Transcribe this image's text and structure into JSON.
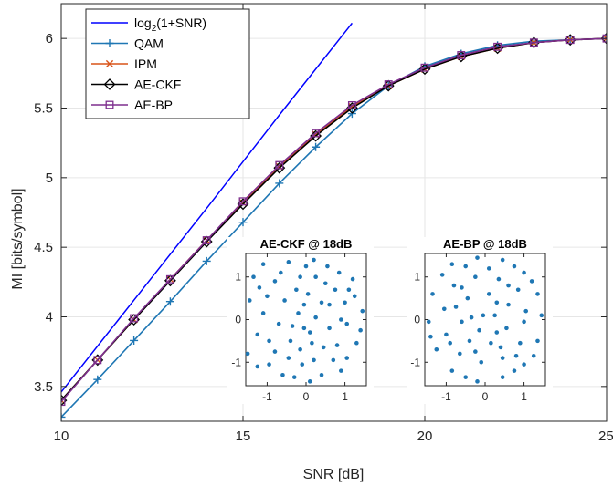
{
  "chart_data": {
    "type": "line",
    "xlabel": "SNR [dB]",
    "ylabel": "MI [bits/symbol]",
    "xlim": [
      10,
      25
    ],
    "ylim": [
      3.25,
      6.25
    ],
    "x_ticks": [
      10,
      15,
      20,
      25
    ],
    "y_ticks": [
      3.5,
      4,
      4.5,
      5,
      5.5,
      6
    ],
    "grid": true,
    "legend_position": "top-left",
    "series": [
      {
        "name": "log",
        "name_sub": "2",
        "name_rest": "(1+SNR)",
        "color": "#0000ff",
        "marker": "none",
        "x": [
          10,
          12,
          14,
          16,
          18
        ],
        "y": [
          3.46,
          4.12,
          4.78,
          5.45,
          6.11
        ]
      },
      {
        "name": "QAM",
        "color": "#1f77b4",
        "marker": "plus",
        "x": [
          10,
          11,
          12,
          13,
          14,
          15,
          16,
          17,
          18,
          19,
          20,
          21,
          22,
          23,
          24,
          25
        ],
        "y": [
          3.28,
          3.55,
          3.83,
          4.11,
          4.4,
          4.68,
          4.96,
          5.22,
          5.46,
          5.66,
          5.8,
          5.89,
          5.95,
          5.98,
          5.99,
          6.0
        ]
      },
      {
        "name": "IPM",
        "color": "#d95319",
        "marker": "x",
        "x": [
          10,
          11,
          12,
          13,
          14,
          15,
          16,
          17,
          18,
          19,
          20,
          21,
          22,
          23,
          24,
          25
        ],
        "y": [
          3.4,
          3.69,
          3.98,
          4.27,
          4.55,
          4.82,
          5.08,
          5.31,
          5.51,
          5.66,
          5.78,
          5.87,
          5.93,
          5.97,
          5.99,
          6.0
        ]
      },
      {
        "name": "AE-CKF",
        "color": "#000000",
        "marker": "diamond",
        "x": [
          10,
          11,
          12,
          13,
          14,
          15,
          16,
          17,
          18,
          19,
          20,
          21,
          22,
          23,
          24,
          25
        ],
        "y": [
          3.4,
          3.69,
          3.98,
          4.26,
          4.54,
          4.81,
          5.07,
          5.3,
          5.5,
          5.66,
          5.78,
          5.87,
          5.93,
          5.97,
          5.99,
          6.0
        ]
      },
      {
        "name": "AE-BP",
        "color": "#7e2f8e",
        "marker": "square",
        "x": [
          10,
          11,
          12,
          13,
          14,
          15,
          16,
          17,
          18,
          19,
          20,
          21,
          22,
          23,
          24,
          25
        ],
        "y": [
          3.39,
          3.69,
          3.99,
          4.27,
          4.55,
          4.83,
          5.09,
          5.32,
          5.52,
          5.67,
          5.79,
          5.88,
          5.94,
          5.97,
          5.99,
          6.0
        ]
      }
    ],
    "insets": [
      {
        "title": "AE-CKF @ 18dB",
        "xlim": [
          -1.55,
          1.55
        ],
        "ylim": [
          -1.55,
          1.55
        ],
        "x_ticks": [
          -1,
          0,
          1
        ],
        "y_ticks": [
          -1,
          0,
          1
        ],
        "color": "#1f77b4",
        "points": [
          [
            -1.1,
            1.3
          ],
          [
            -0.45,
            1.35
          ],
          [
            0.2,
            1.4
          ],
          [
            0.85,
            1.1
          ],
          [
            1.25,
            0.55
          ],
          [
            -1.45,
            0.45
          ],
          [
            -1.25,
            -0.35
          ],
          [
            -0.95,
            -1.05
          ],
          [
            -0.3,
            -1.35
          ],
          [
            0.4,
            -1.3
          ],
          [
            1.05,
            -0.9
          ],
          [
            1.4,
            -0.25
          ],
          [
            1.45,
            0.2
          ],
          [
            -0.8,
            0.9
          ],
          [
            -0.15,
            1.0
          ],
          [
            0.5,
            0.85
          ],
          [
            1.0,
            0.4
          ],
          [
            -1.1,
            0.15
          ],
          [
            -0.95,
            -0.5
          ],
          [
            -0.45,
            -0.9
          ],
          [
            0.2,
            -0.95
          ],
          [
            0.8,
            -0.6
          ],
          [
            1.05,
            -0.1
          ],
          [
            -0.55,
            0.45
          ],
          [
            0.05,
            0.6
          ],
          [
            0.6,
            0.35
          ],
          [
            -0.7,
            -0.1
          ],
          [
            -0.4,
            -0.5
          ],
          [
            0.15,
            -0.55
          ],
          [
            0.6,
            -0.2
          ],
          [
            -0.2,
            0.15
          ],
          [
            0.25,
            0.05
          ],
          [
            -0.05,
            -0.2
          ],
          [
            -1.35,
            1.0
          ],
          [
            1.2,
            0.95
          ],
          [
            -0.6,
            -1.3
          ],
          [
            0.9,
            -1.2
          ],
          [
            -1.5,
            -0.8
          ],
          [
            0.0,
            1.25
          ],
          [
            -0.1,
            -1.05
          ],
          [
            0.4,
            0.4
          ],
          [
            -0.35,
            -0.15
          ],
          [
            0.9,
            0.0
          ],
          [
            -1.0,
            0.55
          ],
          [
            0.45,
            -0.65
          ],
          [
            -0.25,
            0.7
          ],
          [
            0.7,
            -0.95
          ],
          [
            -0.8,
            -0.75
          ],
          [
            1.3,
            -0.55
          ],
          [
            0.25,
            1.0
          ],
          [
            -0.65,
            1.1
          ],
          [
            0.1,
            -0.3
          ],
          [
            -0.05,
            0.35
          ],
          [
            1.1,
            0.7
          ],
          [
            -1.25,
            -1.1
          ],
          [
            0.55,
            1.25
          ],
          [
            -0.15,
            -0.7
          ],
          [
            -1.2,
            0.75
          ],
          [
            0.75,
            0.7
          ],
          [
            0.1,
            -1.45
          ]
        ]
      },
      {
        "title": "AE-BP @ 18dB",
        "xlim": [
          -1.55,
          1.55
        ],
        "ylim": [
          -1.55,
          1.55
        ],
        "x_ticks": [
          -1,
          0,
          1
        ],
        "y_ticks": [
          -1,
          0,
          1
        ],
        "color": "#1f77b4",
        "points": [
          [
            -0.85,
            1.3
          ],
          [
            -0.2,
            1.45
          ],
          [
            0.45,
            1.4
          ],
          [
            1.0,
            1.1
          ],
          [
            1.35,
            0.6
          ],
          [
            -1.35,
            0.6
          ],
          [
            -1.45,
            -0.05
          ],
          [
            -1.25,
            -0.7
          ],
          [
            -0.85,
            -1.2
          ],
          [
            -0.2,
            -1.45
          ],
          [
            0.45,
            -1.35
          ],
          [
            1.0,
            -1.05
          ],
          [
            1.35,
            -0.5
          ],
          [
            1.45,
            0.1
          ],
          [
            -0.8,
            0.8
          ],
          [
            -0.25,
            1.0
          ],
          [
            0.35,
            0.95
          ],
          [
            0.85,
            0.7
          ],
          [
            1.05,
            0.2
          ],
          [
            -1.05,
            0.25
          ],
          [
            -1.0,
            -0.35
          ],
          [
            -0.65,
            -0.8
          ],
          [
            -0.1,
            -1.0
          ],
          [
            0.45,
            -0.9
          ],
          [
            0.9,
            -0.55
          ],
          [
            1.0,
            -0.05
          ],
          [
            -0.45,
            0.5
          ],
          [
            0.1,
            0.6
          ],
          [
            0.6,
            0.35
          ],
          [
            -0.6,
            -0.05
          ],
          [
            -0.4,
            -0.5
          ],
          [
            0.15,
            -0.55
          ],
          [
            0.55,
            -0.2
          ],
          [
            -0.05,
            0.1
          ],
          [
            0.25,
            0.1
          ],
          [
            -0.15,
            -0.25
          ],
          [
            0.3,
            -0.3
          ],
          [
            -0.5,
            1.25
          ],
          [
            0.75,
            1.25
          ],
          [
            -1.1,
            1.05
          ],
          [
            1.2,
            0.9
          ],
          [
            -1.4,
            -0.4
          ],
          [
            -0.5,
            -1.35
          ],
          [
            0.75,
            -1.2
          ],
          [
            1.25,
            -0.85
          ],
          [
            -0.75,
            0.3
          ],
          [
            0.6,
            0.8
          ],
          [
            -0.25,
            -0.75
          ],
          [
            0.8,
            -0.85
          ],
          [
            -0.9,
            -0.55
          ],
          [
            0.1,
            1.2
          ],
          [
            -0.35,
            0.05
          ],
          [
            0.4,
            -0.65
          ],
          [
            -0.6,
            0.75
          ],
          [
            0.3,
            0.4
          ]
        ]
      }
    ]
  }
}
